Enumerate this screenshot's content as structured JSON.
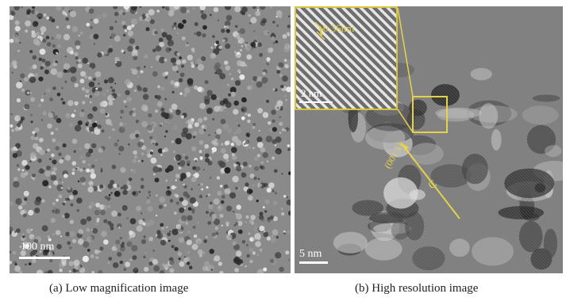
{
  "panel_a": {
    "scale_label": "100 nm",
    "caption": "(a) Low magnification image"
  },
  "panel_b": {
    "scale_label": "5 nm",
    "inset_scale_label": "2 nm",
    "inset_spacing_label": "0.36nm",
    "plane_label": "(001 1)",
    "axis_label": "C",
    "caption": "(b) High resolution image"
  },
  "colors": {
    "annotation": "#e4d24a",
    "scale_bar": "#ffffff"
  }
}
